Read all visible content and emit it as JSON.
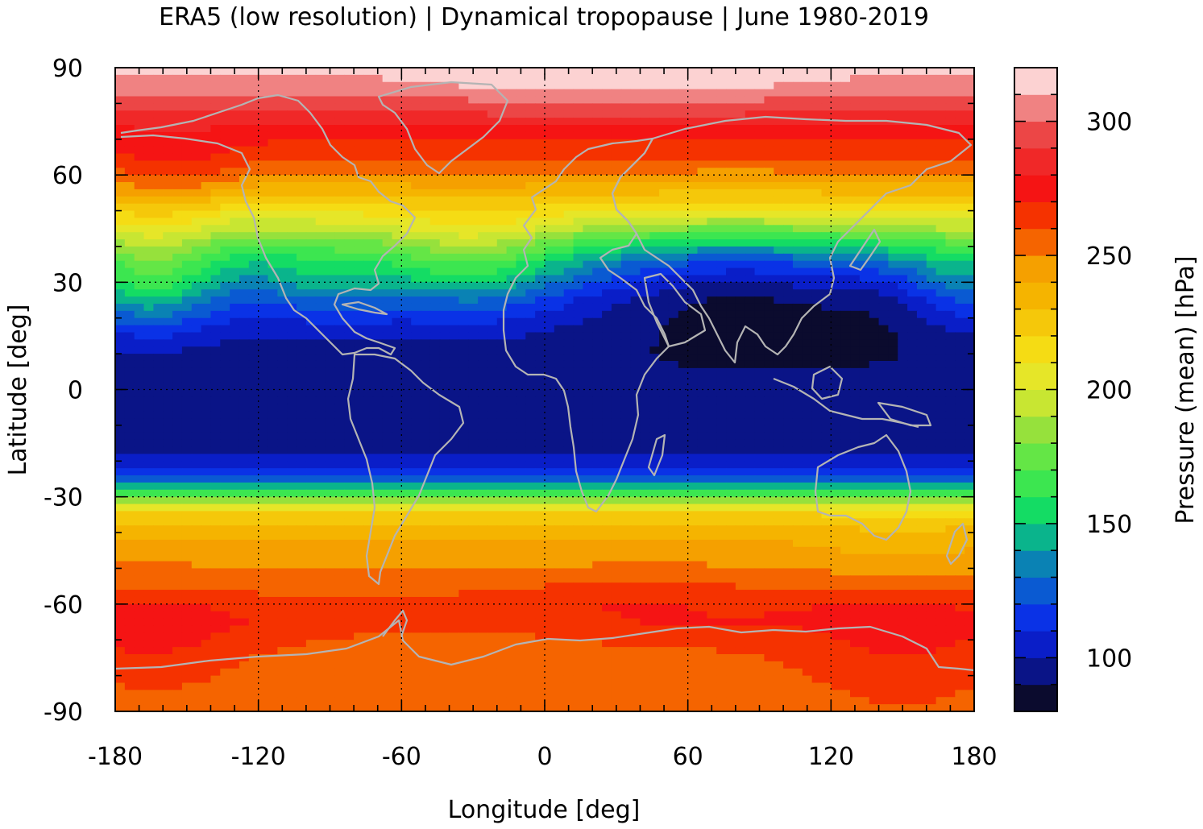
{
  "title": "ERA5 (low resolution) | Dynamical tropopause | June 1980-2019",
  "chart_data": {
    "type": "heatmap",
    "title": "ERA5 (low resolution) | Dynamical tropopause | June 1980-2019",
    "xlabel": "Longitude [deg]",
    "ylabel": "Latitude [deg]",
    "xlim": [
      -180,
      180
    ],
    "ylim": [
      -90,
      90
    ],
    "x_ticks": [
      -180,
      -120,
      -60,
      0,
      60,
      120,
      180
    ],
    "y_ticks": [
      90,
      60,
      30,
      0,
      -30,
      -60,
      -90
    ],
    "x_tick_labels": [
      "-180",
      "-120",
      "-60",
      "0",
      "60",
      "120",
      "180"
    ],
    "y_tick_labels": [
      "90",
      "60",
      "30",
      "0",
      "-30",
      "-60",
      "-90"
    ],
    "grid": true,
    "colorbar": {
      "label": "Pressure (mean) [hPa]",
      "range": [
        80,
        320
      ],
      "ticks": [
        100,
        150,
        200,
        250,
        300
      ],
      "tick_labels": [
        "100",
        "150",
        "200",
        "250",
        "300"
      ],
      "levels": [
        {
          "from": 80,
          "to": 90,
          "color": "#0b0b2e"
        },
        {
          "from": 90,
          "to": 100,
          "color": "#0a1487"
        },
        {
          "from": 100,
          "to": 110,
          "color": "#0a1ec8"
        },
        {
          "from": 110,
          "to": 120,
          "color": "#0a32e6"
        },
        {
          "from": 120,
          "to": 130,
          "color": "#0a5ad2"
        },
        {
          "from": 130,
          "to": 140,
          "color": "#0a82b4"
        },
        {
          "from": 140,
          "to": 150,
          "color": "#0ab48c"
        },
        {
          "from": 150,
          "to": 160,
          "color": "#14dc64"
        },
        {
          "from": 160,
          "to": 170,
          "color": "#3ce650"
        },
        {
          "from": 170,
          "to": 180,
          "color": "#64e646"
        },
        {
          "from": 180,
          "to": 190,
          "color": "#96e13c"
        },
        {
          "from": 190,
          "to": 200,
          "color": "#c8e632"
        },
        {
          "from": 200,
          "to": 210,
          "color": "#e6e628"
        },
        {
          "from": 210,
          "to": 220,
          "color": "#f5dc14"
        },
        {
          "from": 220,
          "to": 230,
          "color": "#f5c80a"
        },
        {
          "from": 230,
          "to": 240,
          "color": "#f5b400"
        },
        {
          "from": 240,
          "to": 250,
          "color": "#f5a000"
        },
        {
          "from": 250,
          "to": 260,
          "color": "#f56400"
        },
        {
          "from": 260,
          "to": 270,
          "color": "#f53200"
        },
        {
          "from": 270,
          "to": 280,
          "color": "#f51414"
        },
        {
          "from": 280,
          "to": 290,
          "color": "#f02828"
        },
        {
          "from": 290,
          "to": 300,
          "color": "#ec4646"
        },
        {
          "from": 300,
          "to": 310,
          "color": "#f08282"
        },
        {
          "from": 310,
          "to": 320,
          "color": "#fcd2d2"
        }
      ]
    },
    "zonal_profile": {
      "lat": [
        90,
        85,
        80,
        75,
        70,
        65,
        60,
        55,
        50,
        45,
        40,
        35,
        30,
        25,
        20,
        15,
        10,
        5,
        0,
        -5,
        -10,
        -15,
        -20,
        -25,
        -30,
        -35,
        -40,
        -45,
        -50,
        -55,
        -60,
        -65,
        -70,
        -75,
        -80,
        -85,
        -90
      ],
      "pressure": [
        312,
        305,
        292,
        282,
        270,
        262,
        248,
        232,
        212,
        190,
        162,
        140,
        125,
        112,
        104,
        98,
        94,
        93,
        93,
        93,
        94,
        97,
        104,
        125,
        175,
        222,
        238,
        245,
        250,
        256,
        264,
        268,
        262,
        258,
        256,
        255,
        255
      ]
    },
    "coastline_color": "#b4b4b4"
  },
  "colors": {
    "frame": "#000000",
    "grid": "#000000",
    "coastline": "#b4b4b4"
  }
}
